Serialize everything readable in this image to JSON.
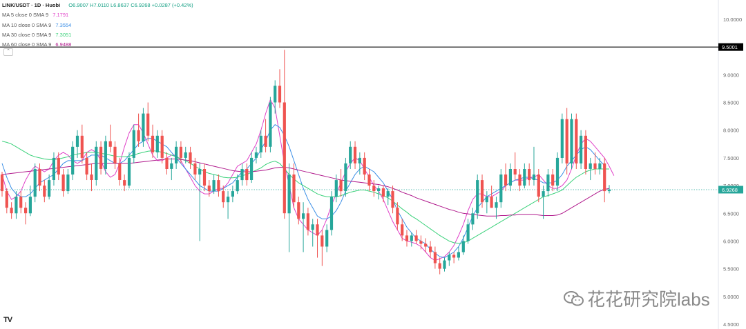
{
  "header": {
    "symbol": "LINK/USDT · 1D · Huobi",
    "ohlc": "O6.9007 H7.0110 L6.8637 C6.9268 +0.0287 (+0.42%)"
  },
  "indicators": [
    {
      "label": "MA 5 close 0 SMA 9",
      "value": "7.1791",
      "color": "#e040c8"
    },
    {
      "label": "MA 10 close 0 SMA 9",
      "value": "7.3554",
      "color": "#3a8ee6"
    },
    {
      "label": "MA 30 close 0 SMA 9",
      "value": "7.3051",
      "color": "#3ad17a"
    },
    {
      "label": "MA 60 close 0 SMA 9",
      "value": "6.9488",
      "color": "#b0198c"
    }
  ],
  "watermark": "花花研究院labs",
  "logo": "TV",
  "collapse_icon": "chevron-up-icon",
  "colors": {
    "up": "#26a69a",
    "down": "#ef5350",
    "hline": "#000000",
    "price_line": "#26a69a"
  },
  "chart_data": {
    "type": "candlestick",
    "ylim": [
      4.5,
      10.5
    ],
    "y_ticks": [
      "10.0000",
      "9.5000",
      "9.0000",
      "8.5000",
      "8.0000",
      "7.5000",
      "7.0000",
      "6.9268",
      "6.5000",
      "6.0000",
      "5.5000",
      "5.0000",
      "4.5000"
    ],
    "horizontal_line": {
      "value": 9.5001,
      "label": "9.5001"
    },
    "last_price": {
      "value": 6.9268,
      "label": "6.9268"
    },
    "candles": [
      [
        7.2,
        7.25,
        6.8,
        6.9
      ],
      [
        6.9,
        6.95,
        6.5,
        6.6
      ],
      [
        6.6,
        6.7,
        6.4,
        6.5
      ],
      [
        6.5,
        6.9,
        6.4,
        6.8
      ],
      [
        6.8,
        6.9,
        6.5,
        6.6
      ],
      [
        6.6,
        6.7,
        6.3,
        6.5
      ],
      [
        6.5,
        7.0,
        6.45,
        6.8
      ],
      [
        6.8,
        7.4,
        6.7,
        7.3
      ],
      [
        7.3,
        7.4,
        6.9,
        7.0
      ],
      [
        7.0,
        7.1,
        6.7,
        6.8
      ],
      [
        6.8,
        7.2,
        6.75,
        7.1
      ],
      [
        7.1,
        7.6,
        7.0,
        7.5
      ],
      [
        7.5,
        7.6,
        7.1,
        7.2
      ],
      [
        7.2,
        7.3,
        6.8,
        6.9
      ],
      [
        6.9,
        7.3,
        6.85,
        7.2
      ],
      [
        7.2,
        7.8,
        7.1,
        7.7
      ],
      [
        7.7,
        8.0,
        7.5,
        7.9
      ],
      [
        7.9,
        8.1,
        7.4,
        7.5
      ],
      [
        7.5,
        7.6,
        7.1,
        7.2
      ],
      [
        7.2,
        7.4,
        6.9,
        7.1
      ],
      [
        7.1,
        7.8,
        7.0,
        7.7
      ],
      [
        7.7,
        7.8,
        7.2,
        7.3
      ],
      [
        7.3,
        7.9,
        7.2,
        7.8
      ],
      [
        7.8,
        8.1,
        7.6,
        7.7
      ],
      [
        7.7,
        7.8,
        7.3,
        7.4
      ],
      [
        7.4,
        7.5,
        7.0,
        7.1
      ],
      [
        7.1,
        7.2,
        6.9,
        7.0
      ],
      [
        7.0,
        7.6,
        6.95,
        7.5
      ],
      [
        7.5,
        8.1,
        7.4,
        8.0
      ],
      [
        8.0,
        8.3,
        7.7,
        7.8
      ],
      [
        7.8,
        8.4,
        7.7,
        8.3
      ],
      [
        8.3,
        8.5,
        7.8,
        7.9
      ],
      [
        7.9,
        8.1,
        7.5,
        7.6
      ],
      [
        7.6,
        8.0,
        7.5,
        7.9
      ],
      [
        7.9,
        8.0,
        7.4,
        7.5
      ],
      [
        7.5,
        7.6,
        7.2,
        7.3
      ],
      [
        7.3,
        7.5,
        7.1,
        7.4
      ],
      [
        7.4,
        7.8,
        7.3,
        7.7
      ],
      [
        7.7,
        7.8,
        7.4,
        7.5
      ],
      [
        7.5,
        7.7,
        7.4,
        7.6
      ],
      [
        7.6,
        7.7,
        7.3,
        7.4
      ],
      [
        7.4,
        7.5,
        7.1,
        7.2
      ],
      [
        7.2,
        7.4,
        6.0,
        7.3
      ],
      [
        7.3,
        7.4,
        6.9,
        7.0
      ],
      [
        7.0,
        7.1,
        6.8,
        6.9
      ],
      [
        6.9,
        7.2,
        6.85,
        7.1
      ],
      [
        7.1,
        7.2,
        6.8,
        6.9
      ],
      [
        6.9,
        7.0,
        6.6,
        6.7
      ],
      [
        6.7,
        6.9,
        6.4,
        6.8
      ],
      [
        6.8,
        7.0,
        6.7,
        6.9
      ],
      [
        6.9,
        7.2,
        6.85,
        7.1
      ],
      [
        7.1,
        7.4,
        7.0,
        7.3
      ],
      [
        7.3,
        7.4,
        7.0,
        7.1
      ],
      [
        7.1,
        7.6,
        7.05,
        7.5
      ],
      [
        7.5,
        7.7,
        7.4,
        7.6
      ],
      [
        7.6,
        8.0,
        7.5,
        7.9
      ],
      [
        7.9,
        8.2,
        7.6,
        7.7
      ],
      [
        7.7,
        8.6,
        7.6,
        8.5
      ],
      [
        8.5,
        8.9,
        8.3,
        8.8
      ],
      [
        8.8,
        9.1,
        8.4,
        8.5
      ],
      [
        8.5,
        9.45,
        6.4,
        6.5
      ],
      [
        6.5,
        7.4,
        5.8,
        7.2
      ],
      [
        7.2,
        7.4,
        6.6,
        6.7
      ],
      [
        6.7,
        6.8,
        6.3,
        6.4
      ],
      [
        6.4,
        6.7,
        5.8,
        6.5
      ],
      [
        6.5,
        6.6,
        6.1,
        6.2
      ],
      [
        6.2,
        6.4,
        5.9,
        6.3
      ],
      [
        6.3,
        6.4,
        5.7,
        6.1
      ],
      [
        6.1,
        6.2,
        5.55,
        5.9
      ],
      [
        5.9,
        6.3,
        5.8,
        6.2
      ],
      [
        6.2,
        6.9,
        6.1,
        6.8
      ],
      [
        6.8,
        7.2,
        6.7,
        7.1
      ],
      [
        7.1,
        7.3,
        6.8,
        6.9
      ],
      [
        6.9,
        7.5,
        6.8,
        7.4
      ],
      [
        7.4,
        7.8,
        7.3,
        7.7
      ],
      [
        7.7,
        7.8,
        7.3,
        7.4
      ],
      [
        7.4,
        7.6,
        7.2,
        7.5
      ],
      [
        7.5,
        7.6,
        7.1,
        7.2
      ],
      [
        7.2,
        7.3,
        6.9,
        7.0
      ],
      [
        7.0,
        7.1,
        6.8,
        6.9
      ],
      [
        6.9,
        7.0,
        6.75,
        6.95
      ],
      [
        6.95,
        7.0,
        6.7,
        6.8
      ],
      [
        6.8,
        6.95,
        6.65,
        6.9
      ],
      [
        6.9,
        7.0,
        6.5,
        6.6
      ],
      [
        6.6,
        6.7,
        6.2,
        6.3
      ],
      [
        6.3,
        6.4,
        6.0,
        6.1
      ],
      [
        6.1,
        6.2,
        5.9,
        6.0
      ],
      [
        6.0,
        6.15,
        5.9,
        6.1
      ],
      [
        6.1,
        6.2,
        5.95,
        6.0
      ],
      [
        6.0,
        6.1,
        5.85,
        5.95
      ],
      [
        5.95,
        6.05,
        5.8,
        5.9
      ],
      [
        5.9,
        6.0,
        5.7,
        5.8
      ],
      [
        5.8,
        5.9,
        5.5,
        5.6
      ],
      [
        5.6,
        5.7,
        5.4,
        5.5
      ],
      [
        5.5,
        5.7,
        5.45,
        5.65
      ],
      [
        5.65,
        5.8,
        5.55,
        5.75
      ],
      [
        5.75,
        5.8,
        5.6,
        5.7
      ],
      [
        5.7,
        5.9,
        5.65,
        5.8
      ],
      [
        5.8,
        6.1,
        5.75,
        6.0
      ],
      [
        6.0,
        6.4,
        5.95,
        6.3
      ],
      [
        6.3,
        6.6,
        6.2,
        6.5
      ],
      [
        6.5,
        7.2,
        6.4,
        7.1
      ],
      [
        7.1,
        7.2,
        6.6,
        6.7
      ],
      [
        6.7,
        6.9,
        6.5,
        6.8
      ],
      [
        6.8,
        7.0,
        6.6,
        6.6
      ],
      [
        6.6,
        6.8,
        6.4,
        6.7
      ],
      [
        6.7,
        7.3,
        6.6,
        7.2
      ],
      [
        7.2,
        7.4,
        6.9,
        7.0
      ],
      [
        7.0,
        7.4,
        6.9,
        7.3
      ],
      [
        7.3,
        7.6,
        7.1,
        7.2
      ],
      [
        7.2,
        7.3,
        6.9,
        7.0
      ],
      [
        7.0,
        7.4,
        6.95,
        7.3
      ],
      [
        7.3,
        7.4,
        7.0,
        7.1
      ],
      [
        7.1,
        7.7,
        7.0,
        7.2
      ],
      [
        7.2,
        7.3,
        6.7,
        6.8
      ],
      [
        6.8,
        7.0,
        6.4,
        6.9
      ],
      [
        6.9,
        7.3,
        6.8,
        7.2
      ],
      [
        7.2,
        7.3,
        6.9,
        7.0
      ],
      [
        7.0,
        7.6,
        6.9,
        7.5
      ],
      [
        7.5,
        8.3,
        7.4,
        8.2
      ],
      [
        8.2,
        8.4,
        7.2,
        7.4
      ],
      [
        7.4,
        8.3,
        7.3,
        8.2
      ],
      [
        8.2,
        8.3,
        7.3,
        7.4
      ],
      [
        7.4,
        8.0,
        7.3,
        7.9
      ],
      [
        7.9,
        8.0,
        7.2,
        7.3
      ],
      [
        7.3,
        7.5,
        7.1,
        7.4
      ],
      [
        7.4,
        7.6,
        7.2,
        7.3
      ],
      [
        7.3,
        7.5,
        7.2,
        7.4
      ],
      [
        7.4,
        7.5,
        6.7,
        6.9
      ],
      [
        6.9,
        7.01,
        6.86,
        6.93
      ]
    ],
    "ma_series": [
      {
        "name": "MA 5",
        "values": [
          7.2,
          6.9,
          6.75,
          6.8,
          6.9,
          7.1,
          7.25,
          7.35,
          7.3,
          7.25,
          7.3,
          7.45,
          7.55,
          7.6,
          7.55,
          7.45,
          7.4,
          7.45,
          7.6,
          7.65,
          7.6,
          7.45,
          7.25,
          7.15,
          7.2,
          7.4,
          7.7,
          7.95,
          8.1,
          8.1,
          7.95,
          7.75,
          7.55,
          7.45,
          7.45,
          7.5,
          7.55,
          7.55,
          7.45,
          7.3,
          7.15,
          7.0,
          6.9,
          6.85,
          6.85,
          6.9,
          6.95,
          6.95,
          7.05,
          7.2,
          7.35,
          7.4,
          7.45,
          7.6,
          7.75,
          8.0,
          8.3,
          8.55,
          8.4,
          7.9,
          7.4,
          7.0,
          6.6,
          6.4,
          6.3,
          6.2,
          6.15,
          6.1,
          6.2,
          6.4,
          6.65,
          6.85,
          7.05,
          7.25,
          7.4,
          7.5,
          7.45,
          7.3,
          7.15,
          7.0,
          6.9,
          6.75,
          6.55,
          6.35,
          6.2,
          6.05,
          6.0,
          5.98,
          5.95,
          5.9,
          5.8,
          5.7,
          5.65,
          5.68,
          5.72,
          5.8,
          5.92,
          6.1,
          6.3,
          6.55,
          6.75,
          6.85,
          6.85,
          6.8,
          6.8,
          6.85,
          6.9,
          7.0,
          7.05,
          7.1,
          7.1,
          7.1,
          7.15,
          7.15,
          7.2,
          7.1,
          7.0,
          6.95,
          6.95,
          7.0,
          7.1,
          7.3,
          7.55,
          7.75,
          7.85,
          7.8,
          7.7,
          7.6,
          7.5,
          7.35,
          7.18
        ]
      },
      {
        "name": "MA 10",
        "values": [
          7.4,
          7.15,
          6.95,
          6.85,
          6.8,
          6.8,
          6.85,
          6.95,
          7.05,
          7.1,
          7.15,
          7.2,
          7.3,
          7.4,
          7.45,
          7.45,
          7.45,
          7.45,
          7.5,
          7.55,
          7.55,
          7.55,
          7.5,
          7.45,
          7.4,
          7.4,
          7.45,
          7.55,
          7.65,
          7.75,
          7.8,
          7.85,
          7.85,
          7.8,
          7.75,
          7.7,
          7.6,
          7.5,
          7.4,
          7.3,
          7.2,
          7.1,
          7.0,
          6.95,
          6.9,
          6.9,
          6.9,
          6.95,
          7.0,
          7.05,
          7.15,
          7.25,
          7.3,
          7.4,
          7.5,
          7.65,
          7.8,
          8.0,
          8.1,
          8.05,
          7.9,
          7.7,
          7.45,
          7.2,
          6.95,
          6.75,
          6.6,
          6.45,
          6.4,
          6.4,
          6.45,
          6.55,
          6.7,
          6.9,
          7.05,
          7.2,
          7.3,
          7.35,
          7.3,
          7.25,
          7.15,
          7.05,
          6.9,
          6.75,
          6.55,
          6.4,
          6.25,
          6.15,
          6.05,
          6.0,
          5.95,
          5.85,
          5.78,
          5.72,
          5.7,
          5.75,
          5.8,
          5.9,
          6.05,
          6.25,
          6.45,
          6.6,
          6.7,
          6.8,
          6.85,
          6.9,
          6.95,
          7.0,
          7.05,
          7.1,
          7.12,
          7.15,
          7.15,
          7.12,
          7.1,
          7.05,
          7.05,
          7.05,
          7.1,
          7.2,
          7.35,
          7.45,
          7.55,
          7.65,
          7.7,
          7.65,
          7.55,
          7.45,
          7.36
        ]
      },
      {
        "name": "MA 30",
        "values": [
          7.8,
          7.78,
          7.75,
          7.7,
          7.65,
          7.6,
          7.55,
          7.52,
          7.5,
          7.48,
          7.47,
          7.47,
          7.48,
          7.5,
          7.52,
          7.55,
          7.57,
          7.58,
          7.6,
          7.6,
          7.6,
          7.58,
          7.57,
          7.55,
          7.53,
          7.52,
          7.52,
          7.53,
          7.55,
          7.58,
          7.6,
          7.62,
          7.63,
          7.62,
          7.6,
          7.58,
          7.55,
          7.52,
          7.48,
          7.45,
          7.4,
          7.35,
          7.3,
          7.25,
          7.22,
          7.2,
          7.18,
          7.15,
          7.14,
          7.14,
          7.15,
          7.18,
          7.2,
          7.24,
          7.28,
          7.32,
          7.38,
          7.42,
          7.44,
          7.4,
          7.3,
          7.2,
          7.12,
          7.05,
          7.0,
          6.95,
          6.9,
          6.85,
          6.82,
          6.8,
          6.8,
          6.8,
          6.82,
          6.85,
          6.88,
          6.9,
          6.92,
          6.92,
          6.9,
          6.88,
          6.85,
          6.82,
          6.78,
          6.72,
          6.65,
          6.58,
          6.52,
          6.45,
          6.4,
          6.34,
          6.28,
          6.22,
          6.16,
          6.1,
          6.05,
          6.0,
          5.97,
          5.96,
          5.97,
          6.0,
          6.05,
          6.1,
          6.15,
          6.2,
          6.25,
          6.3,
          6.35,
          6.4,
          6.45,
          6.5,
          6.55,
          6.6,
          6.65,
          6.7,
          6.75,
          6.8,
          6.82,
          6.85,
          6.88,
          6.92,
          7.0,
          7.08,
          7.15,
          7.2,
          7.25,
          7.28,
          7.3,
          7.3,
          7.3,
          7.3
        ]
      },
      {
        "name": "MA 60",
        "values": [
          7.2,
          7.21,
          7.22,
          7.23,
          7.24,
          7.25,
          7.26,
          7.27,
          7.28,
          7.29,
          7.3,
          7.31,
          7.32,
          7.33,
          7.34,
          7.35,
          7.36,
          7.37,
          7.38,
          7.39,
          7.4,
          7.4,
          7.4,
          7.4,
          7.4,
          7.4,
          7.4,
          7.4,
          7.41,
          7.42,
          7.43,
          7.44,
          7.45,
          7.46,
          7.47,
          7.48,
          7.48,
          7.48,
          7.47,
          7.46,
          7.45,
          7.43,
          7.41,
          7.39,
          7.37,
          7.35,
          7.33,
          7.31,
          7.29,
          7.27,
          7.26,
          7.25,
          7.25,
          7.25,
          7.26,
          7.27,
          7.28,
          7.3,
          7.32,
          7.33,
          7.33,
          7.32,
          7.3,
          7.28,
          7.26,
          7.24,
          7.22,
          7.2,
          7.18,
          7.16,
          7.14,
          7.12,
          7.1,
          7.09,
          7.08,
          7.07,
          7.06,
          7.05,
          7.04,
          7.03,
          7.02,
          7.0,
          6.98,
          6.95,
          6.92,
          6.88,
          6.85,
          6.82,
          6.78,
          6.75,
          6.72,
          6.69,
          6.66,
          6.63,
          6.6,
          6.57,
          6.55,
          6.52,
          6.5,
          6.49,
          6.48,
          6.47,
          6.46,
          6.45,
          6.45,
          6.45,
          6.46,
          6.46,
          6.47,
          6.47,
          6.48,
          6.48,
          6.48,
          6.48,
          6.47,
          6.46,
          6.46,
          6.46,
          6.47,
          6.5,
          6.55,
          6.6,
          6.65,
          6.7,
          6.75,
          6.8,
          6.85,
          6.9,
          6.93,
          6.95
        ]
      }
    ]
  }
}
